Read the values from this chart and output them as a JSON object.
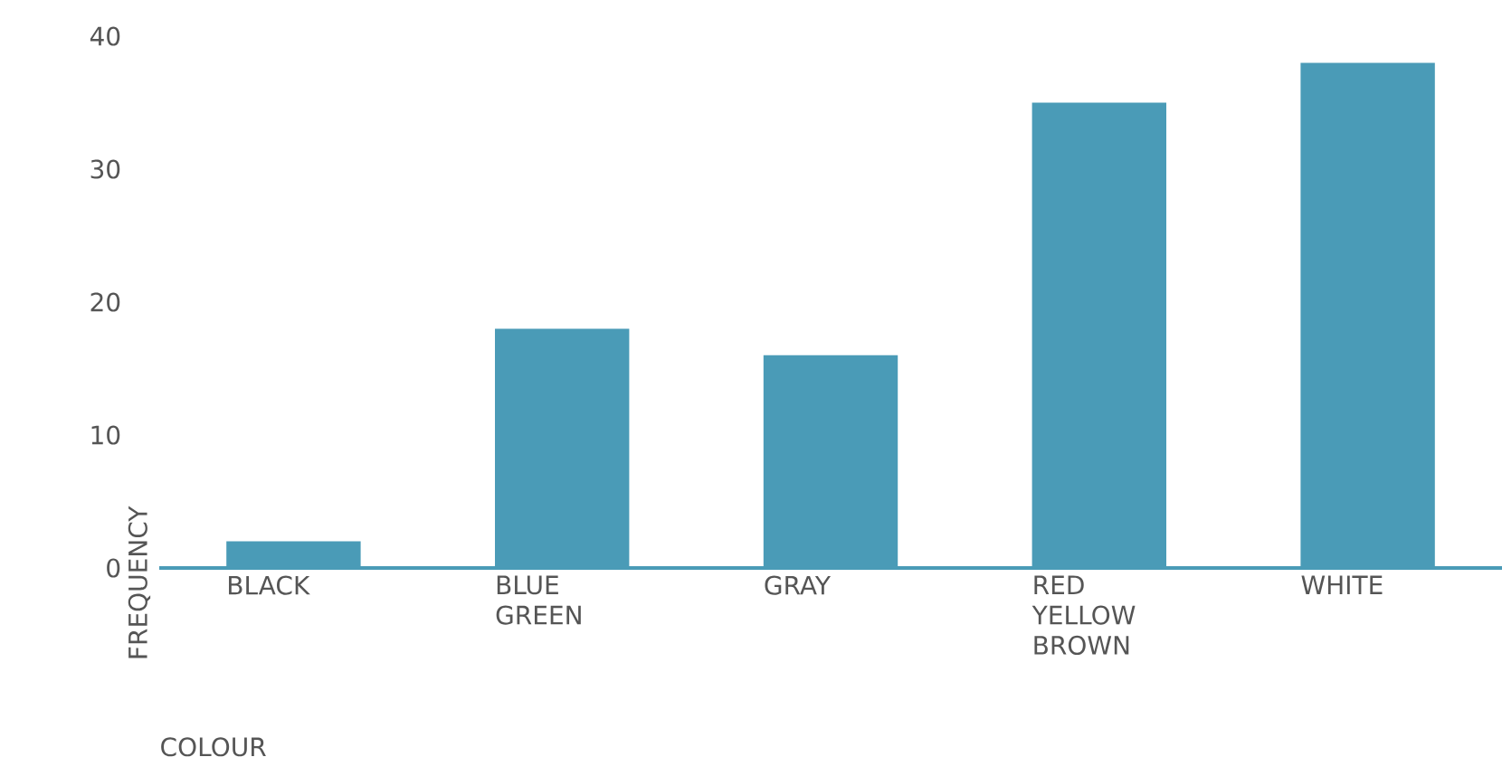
{
  "chart_data": {
    "type": "bar",
    "xlabel": "COLOUR",
    "ylabel": "FREQUENCY",
    "categories": [
      "BLACK",
      "BLUE GREEN",
      "GRAY",
      "RED YELLOW BROWN",
      "WHITE"
    ],
    "values": [
      2,
      18,
      16,
      35,
      38
    ],
    "color": "#4a9bb7",
    "ylim": [
      0,
      40
    ],
    "yticks": [
      0,
      10,
      20,
      30,
      40
    ]
  }
}
